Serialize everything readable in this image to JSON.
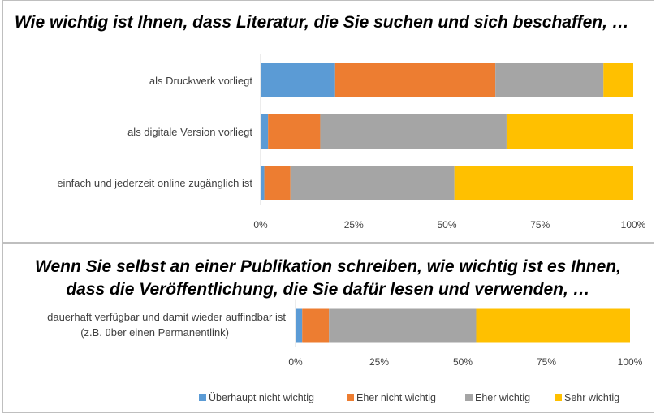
{
  "chart_data": [
    {
      "type": "bar",
      "orientation": "horizontal",
      "stacked": "percent",
      "title": "Wie wichtig ist Ihnen, dass Literatur, die Sie suchen und sich beschaffen, …",
      "categories": [
        "als Druckwerk vorliegt",
        "als digitale Version vorliegt",
        "einfach und jederzeit online zugänglich ist"
      ],
      "series": [
        {
          "name": "Überhaupt nicht wichtig",
          "values": [
            20,
            2,
            1
          ]
        },
        {
          "name": "Eher nicht wichtig",
          "values": [
            43,
            14,
            7
          ]
        },
        {
          "name": "Eher wichtig",
          "values": [
            29,
            50,
            44
          ]
        },
        {
          "name": "Sehr wichtig",
          "values": [
            8,
            34,
            48
          ]
        }
      ],
      "xticks": [
        "0%",
        "25%",
        "50%",
        "75%",
        "100%"
      ],
      "xlim": [
        0,
        100
      ],
      "grid": false
    },
    {
      "type": "bar",
      "orientation": "horizontal",
      "stacked": "percent",
      "title_lines": [
        "Wenn Sie selbst an einer Publikation schreiben, wie wichtig ist es Ihnen,",
        "dass die Veröffentlichung, die Sie dafür lesen und verwenden, …"
      ],
      "category_lines": [
        "dauerhaft verfügbar und damit wieder auffindbar ist",
        "(z.B. über einen Permanentlink)"
      ],
      "series": [
        {
          "name": "Überhaupt nicht wichtig",
          "values": [
            2
          ]
        },
        {
          "name": "Eher nicht wichtig",
          "values": [
            8
          ]
        },
        {
          "name": "Eher wichtig",
          "values": [
            44
          ]
        },
        {
          "name": "Sehr wichtig",
          "values": [
            46
          ]
        }
      ],
      "xticks": [
        "0%",
        "25%",
        "50%",
        "75%",
        "100%"
      ],
      "xlim": [
        0,
        100
      ],
      "grid": false,
      "legend": "bottom"
    }
  ],
  "colors": [
    "#5b9bd5",
    "#ed7d31",
    "#a5a5a5",
    "#ffc000"
  ]
}
